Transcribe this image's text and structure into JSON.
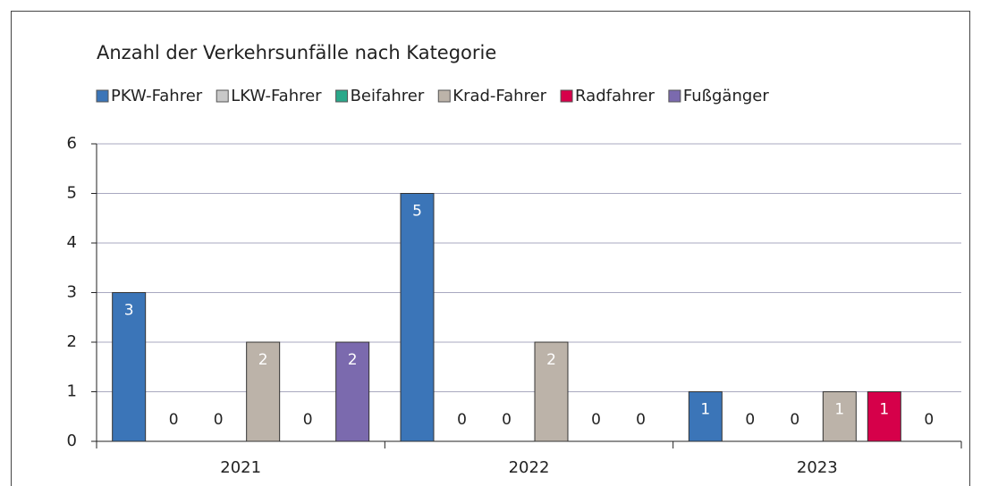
{
  "chart_data": {
    "type": "bar",
    "title": "Anzahl der Verkehrsunfälle nach Kategorie",
    "categories": [
      "2021",
      "2022",
      "2023"
    ],
    "series": [
      {
        "name": "PKW-Fahrer",
        "color": "#3b75b8",
        "values": [
          3,
          5,
          1
        ]
      },
      {
        "name": "LKW-Fahrer",
        "color": "#c8c8c8",
        "values": [
          0,
          0,
          0
        ]
      },
      {
        "name": "Beifahrer",
        "color": "#2aa88a",
        "values": [
          0,
          0,
          0
        ]
      },
      {
        "name": "Krad-Fahrer",
        "color": "#bcb3a9",
        "values": [
          2,
          2,
          1
        ]
      },
      {
        "name": "Radfahrer",
        "color": "#d6004a",
        "values": [
          0,
          0,
          1
        ]
      },
      {
        "name": "Fußgänger",
        "color": "#7b6aae",
        "values": [
          2,
          0,
          0
        ]
      }
    ],
    "ylim": [
      0,
      6
    ],
    "yticks": [
      0,
      1,
      2,
      3,
      4,
      5,
      6
    ],
    "grid": true,
    "legend": "top"
  }
}
